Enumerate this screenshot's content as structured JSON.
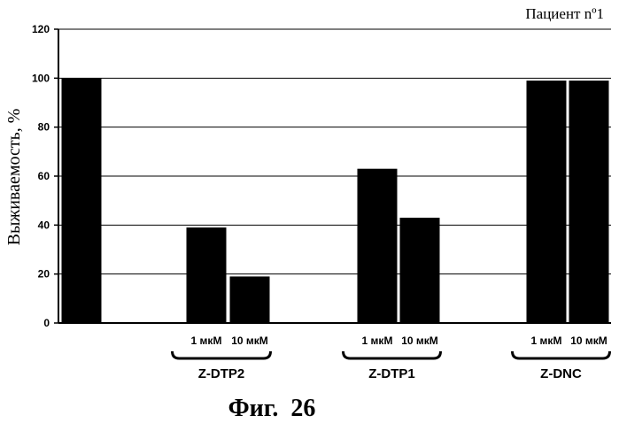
{
  "chart_data": {
    "type": "bar",
    "title": "Пациент nº1",
    "caption": "Фиг.  26",
    "ylabel": "Выживаемость, %",
    "xlabel": "",
    "ylim": [
      0,
      120
    ],
    "yticks": [
      0,
      20,
      40,
      60,
      80,
      100,
      120
    ],
    "grid": true,
    "bars": [
      {
        "label": "",
        "value": 100
      },
      {
        "label": "1 мкМ",
        "value": 39
      },
      {
        "label": "10 мкМ",
        "value": 19
      },
      {
        "label": "1 мкМ",
        "value": 63
      },
      {
        "label": "10 мкМ",
        "value": 43
      },
      {
        "label": "1 мкМ",
        "value": 99
      },
      {
        "label": "10 мкМ",
        "value": 99
      }
    ],
    "groups": [
      {
        "name": "Z-DTP2",
        "bars": [
          1,
          2
        ]
      },
      {
        "name": "Z-DTP1",
        "bars": [
          3,
          4
        ]
      },
      {
        "name": "Z-DNC",
        "bars": [
          5,
          6
        ]
      }
    ]
  }
}
